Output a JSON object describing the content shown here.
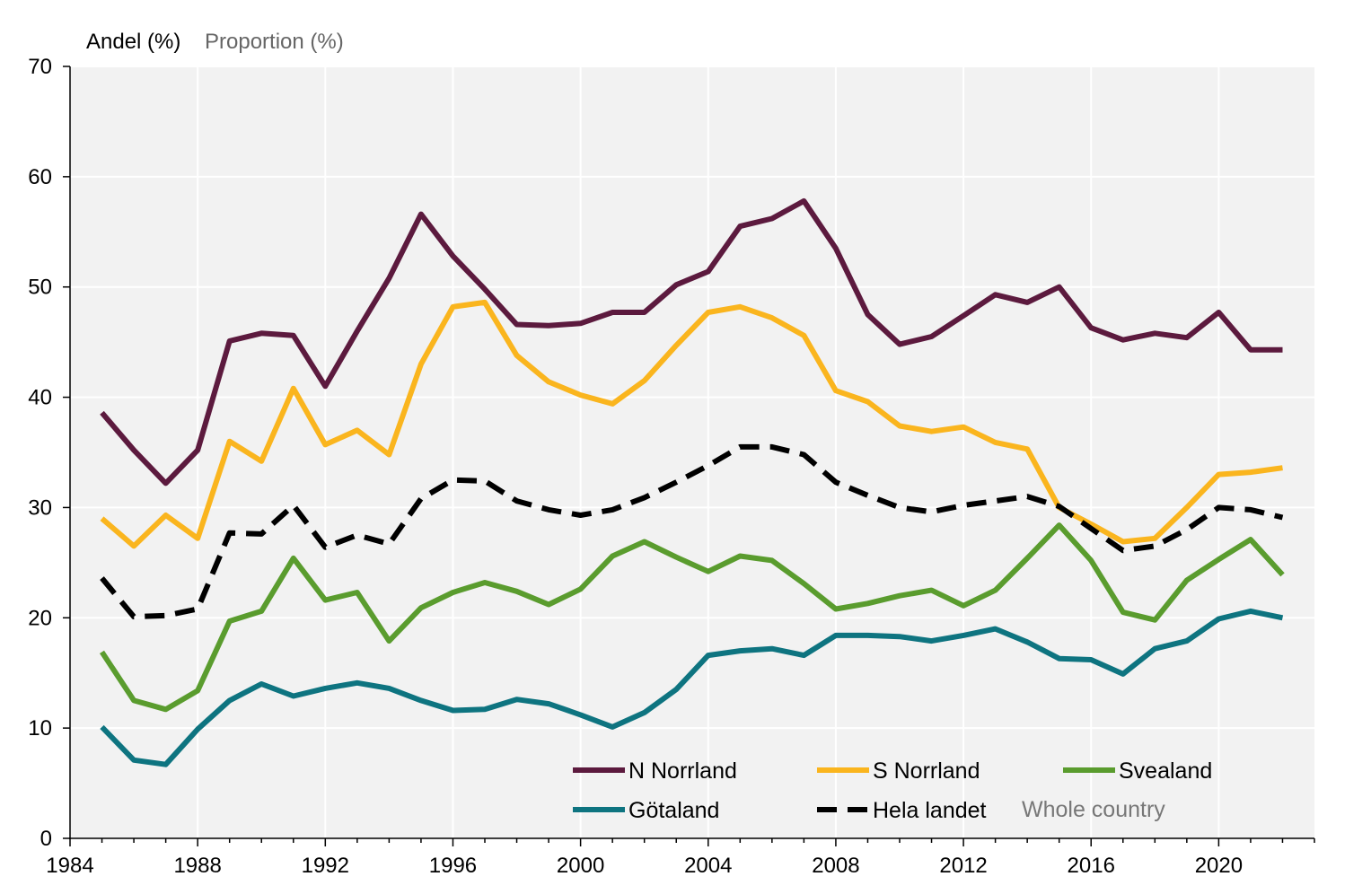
{
  "chart_data": {
    "type": "line",
    "ylabel": "Andel (%)",
    "ylabel_alt": "Proportion (%)",
    "xlim": [
      1984,
      2023
    ],
    "ylim": [
      0,
      70
    ],
    "x_ticks": [
      1984,
      1988,
      1992,
      1996,
      2000,
      2004,
      2008,
      2012,
      2016,
      2020
    ],
    "y_ticks": [
      0,
      10,
      20,
      30,
      40,
      50,
      60,
      70
    ],
    "grid": true,
    "legend_position": "bottom-right",
    "x": [
      1985,
      1986,
      1987,
      1988,
      1989,
      1990,
      1991,
      1992,
      1993,
      1994,
      1995,
      1996,
      1997,
      1998,
      1999,
      2000,
      2001,
      2002,
      2003,
      2004,
      2005,
      2006,
      2007,
      2008,
      2009,
      2010,
      2011,
      2012,
      2013,
      2014,
      2015,
      2016,
      2017,
      2018,
      2019,
      2020,
      2021,
      2022
    ],
    "series": [
      {
        "name": "N Norrland",
        "color": "#5c1a3e",
        "dashed": false,
        "values": [
          38.6,
          35.2,
          32.2,
          35.2,
          45.1,
          45.8,
          45.6,
          41.0,
          46.0,
          50.8,
          56.6,
          52.8,
          49.8,
          46.6,
          46.5,
          46.7,
          47.7,
          47.7,
          50.2,
          51.4,
          55.5,
          56.2,
          57.8,
          53.5,
          47.5,
          44.8,
          45.5,
          47.4,
          49.3,
          48.6,
          50.0,
          46.3,
          45.2,
          45.8,
          45.4,
          47.7,
          44.3,
          44.3
        ]
      },
      {
        "name": "S Norrland",
        "color": "#fab51e",
        "dashed": false,
        "values": [
          29.0,
          26.5,
          29.3,
          27.2,
          36.0,
          34.2,
          40.8,
          35.7,
          37.0,
          34.8,
          43.0,
          48.2,
          48.6,
          43.8,
          41.4,
          40.2,
          39.4,
          41.5,
          44.7,
          47.7,
          48.2,
          47.2,
          45.6,
          40.6,
          39.6,
          37.4,
          36.9,
          37.3,
          35.9,
          35.3,
          30.0,
          28.5,
          26.9,
          27.2,
          30.0,
          33.0,
          33.2,
          33.6
        ]
      },
      {
        "name": "Svealand",
        "color": "#5a9c2e",
        "dashed": false,
        "values": [
          16.9,
          12.5,
          11.7,
          13.4,
          19.7,
          20.6,
          25.4,
          21.6,
          22.3,
          17.9,
          20.9,
          22.3,
          23.2,
          22.4,
          21.2,
          22.6,
          25.6,
          26.9,
          25.5,
          24.2,
          25.6,
          25.2,
          23.1,
          20.8,
          21.3,
          22.0,
          22.5,
          21.1,
          22.5,
          25.4,
          28.4,
          25.2,
          20.5,
          19.8,
          23.4,
          25.3,
          27.1,
          23.9
        ]
      },
      {
        "name": "Götaland",
        "color": "#0e7480",
        "dashed": false,
        "values": [
          10.1,
          7.1,
          6.7,
          9.9,
          12.5,
          14.0,
          12.9,
          13.6,
          14.1,
          13.6,
          12.5,
          11.6,
          11.7,
          12.6,
          12.2,
          11.2,
          10.1,
          11.4,
          13.5,
          16.6,
          17.0,
          17.2,
          16.6,
          18.4,
          18.4,
          18.3,
          17.9,
          18.4,
          19.0,
          17.8,
          16.3,
          16.2,
          14.9,
          17.2,
          17.9,
          19.9,
          20.6,
          20.0
        ]
      },
      {
        "name": "Hela landet",
        "name_alt": "Whole country",
        "color": "#000000",
        "dashed": true,
        "values": [
          23.6,
          20.1,
          20.2,
          20.8,
          27.7,
          27.6,
          30.2,
          26.4,
          27.5,
          26.7,
          30.8,
          32.5,
          32.4,
          30.6,
          29.8,
          29.3,
          29.8,
          30.9,
          32.3,
          33.8,
          35.5,
          35.5,
          34.8,
          32.3,
          31.1,
          30.0,
          29.6,
          30.2,
          30.6,
          31.0,
          30.1,
          28.1,
          26.1,
          26.5,
          28.0,
          30.0,
          29.8,
          29.1
        ]
      }
    ]
  }
}
